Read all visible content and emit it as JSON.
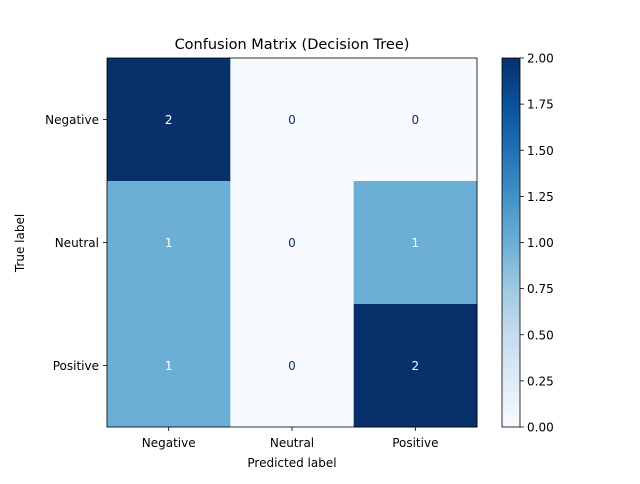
{
  "chart_data": {
    "type": "heatmap",
    "title": "Confusion Matrix (Decision Tree)",
    "xlabel": "Predicted label",
    "ylabel": "True label",
    "x_categories": [
      "Negative",
      "Neutral",
      "Positive"
    ],
    "y_categories": [
      "Negative",
      "Neutral",
      "Positive"
    ],
    "values": [
      [
        2,
        0,
        0
      ],
      [
        1,
        0,
        1
      ],
      [
        1,
        0,
        2
      ]
    ],
    "colormap": "Blues",
    "color_range": [
      0,
      2
    ],
    "colorbar_ticks": [
      "0.00",
      "0.25",
      "0.50",
      "0.75",
      "1.00",
      "1.25",
      "1.50",
      "1.75",
      "2.00"
    ],
    "colors": {
      "low": "#f7fbff",
      "mid": "#6baed6",
      "high": "#08306b",
      "text_light": "#ffffff",
      "text_dark": "#08306b"
    }
  }
}
